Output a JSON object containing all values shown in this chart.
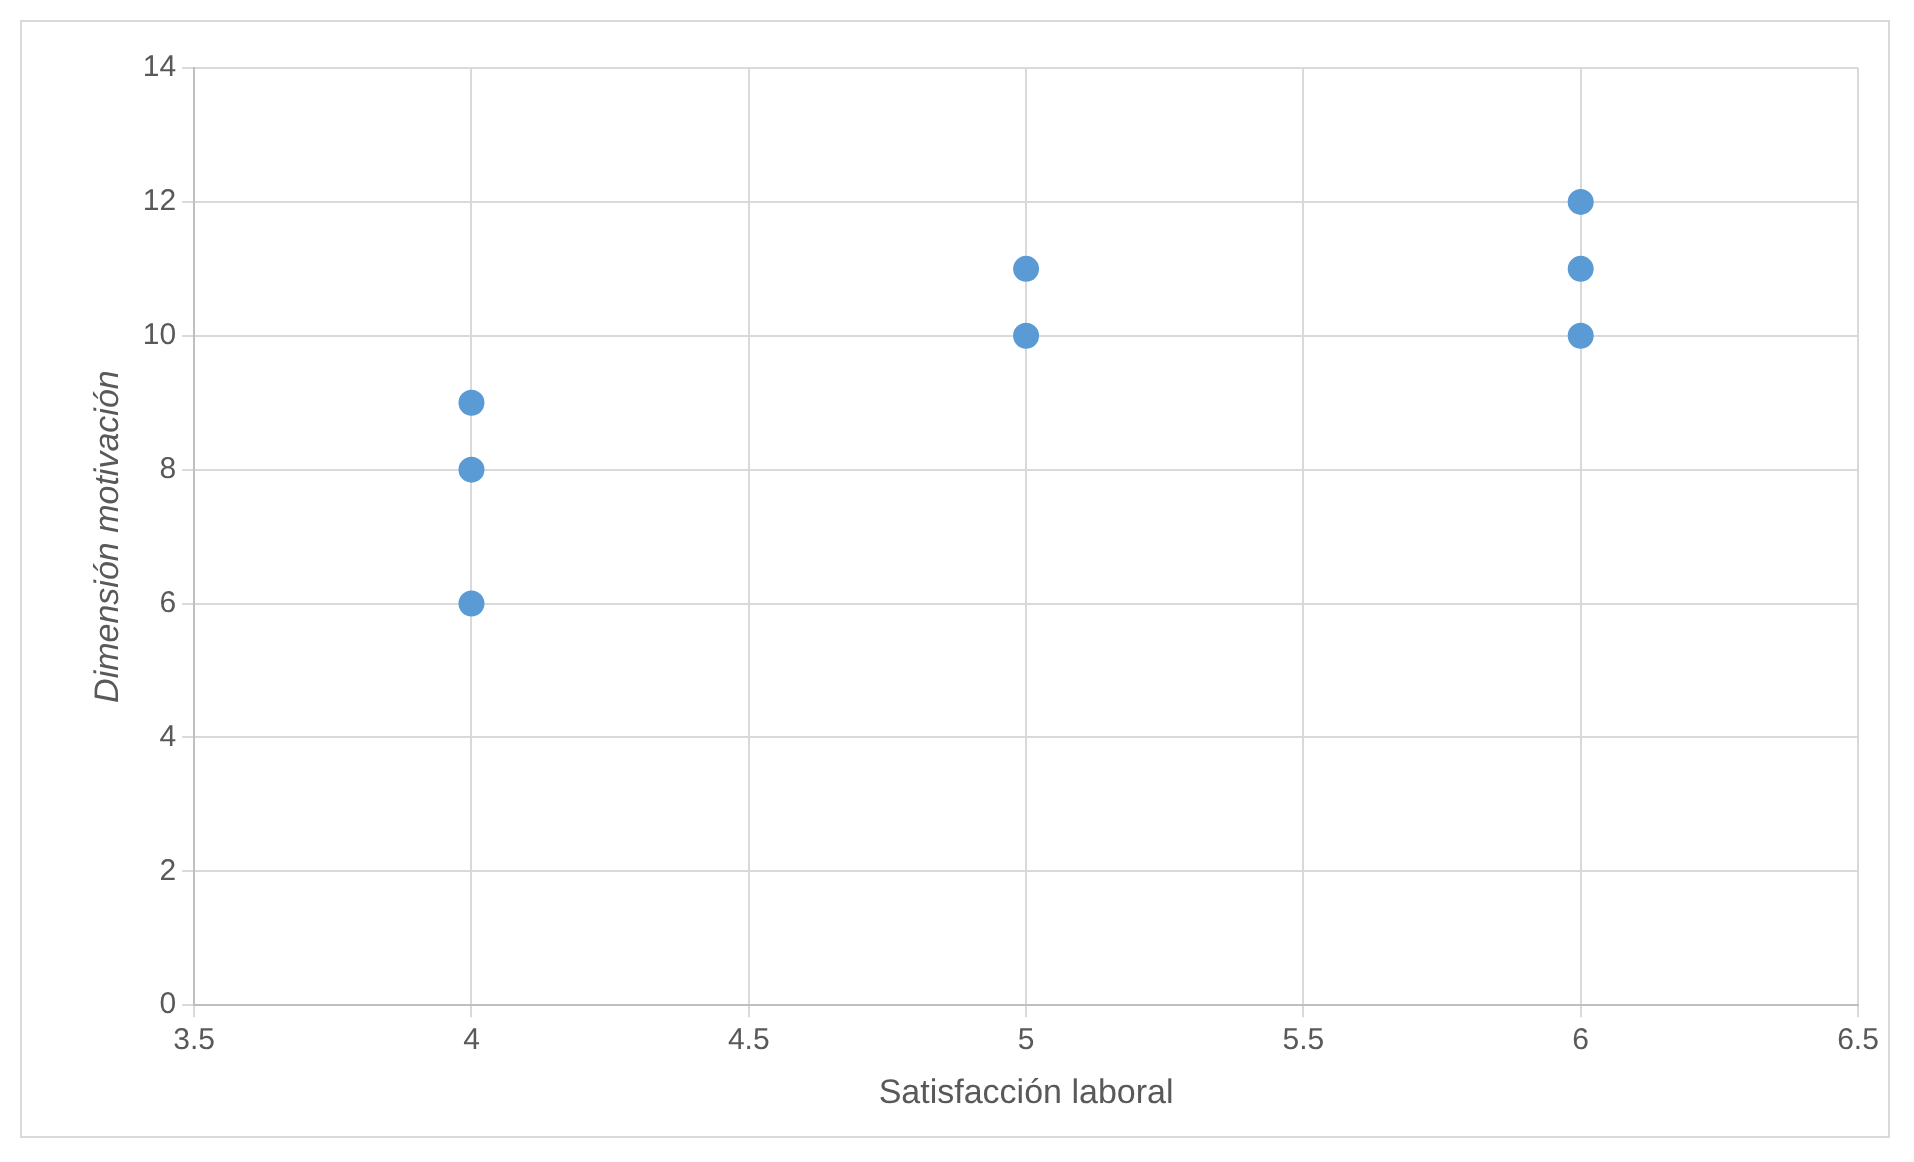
{
  "chart_data": {
    "type": "scatter",
    "xlabel": "Satisfacción laboral",
    "ylabel": "Dimensión motivación",
    "x": [
      4,
      4,
      4,
      5,
      5,
      6,
      6,
      6
    ],
    "values": [
      9,
      8,
      6,
      11,
      10,
      12,
      11,
      10
    ],
    "color": "#5b9bd5",
    "xlim": [
      3.5,
      6.5
    ],
    "xticks": [
      3.5,
      4,
      4.5,
      5,
      5.5,
      6,
      6.5
    ],
    "ylim": [
      0,
      14
    ],
    "yticks": [
      0,
      2,
      4,
      6,
      8,
      10,
      12,
      14
    ],
    "grid": true,
    "marker": "circle"
  }
}
